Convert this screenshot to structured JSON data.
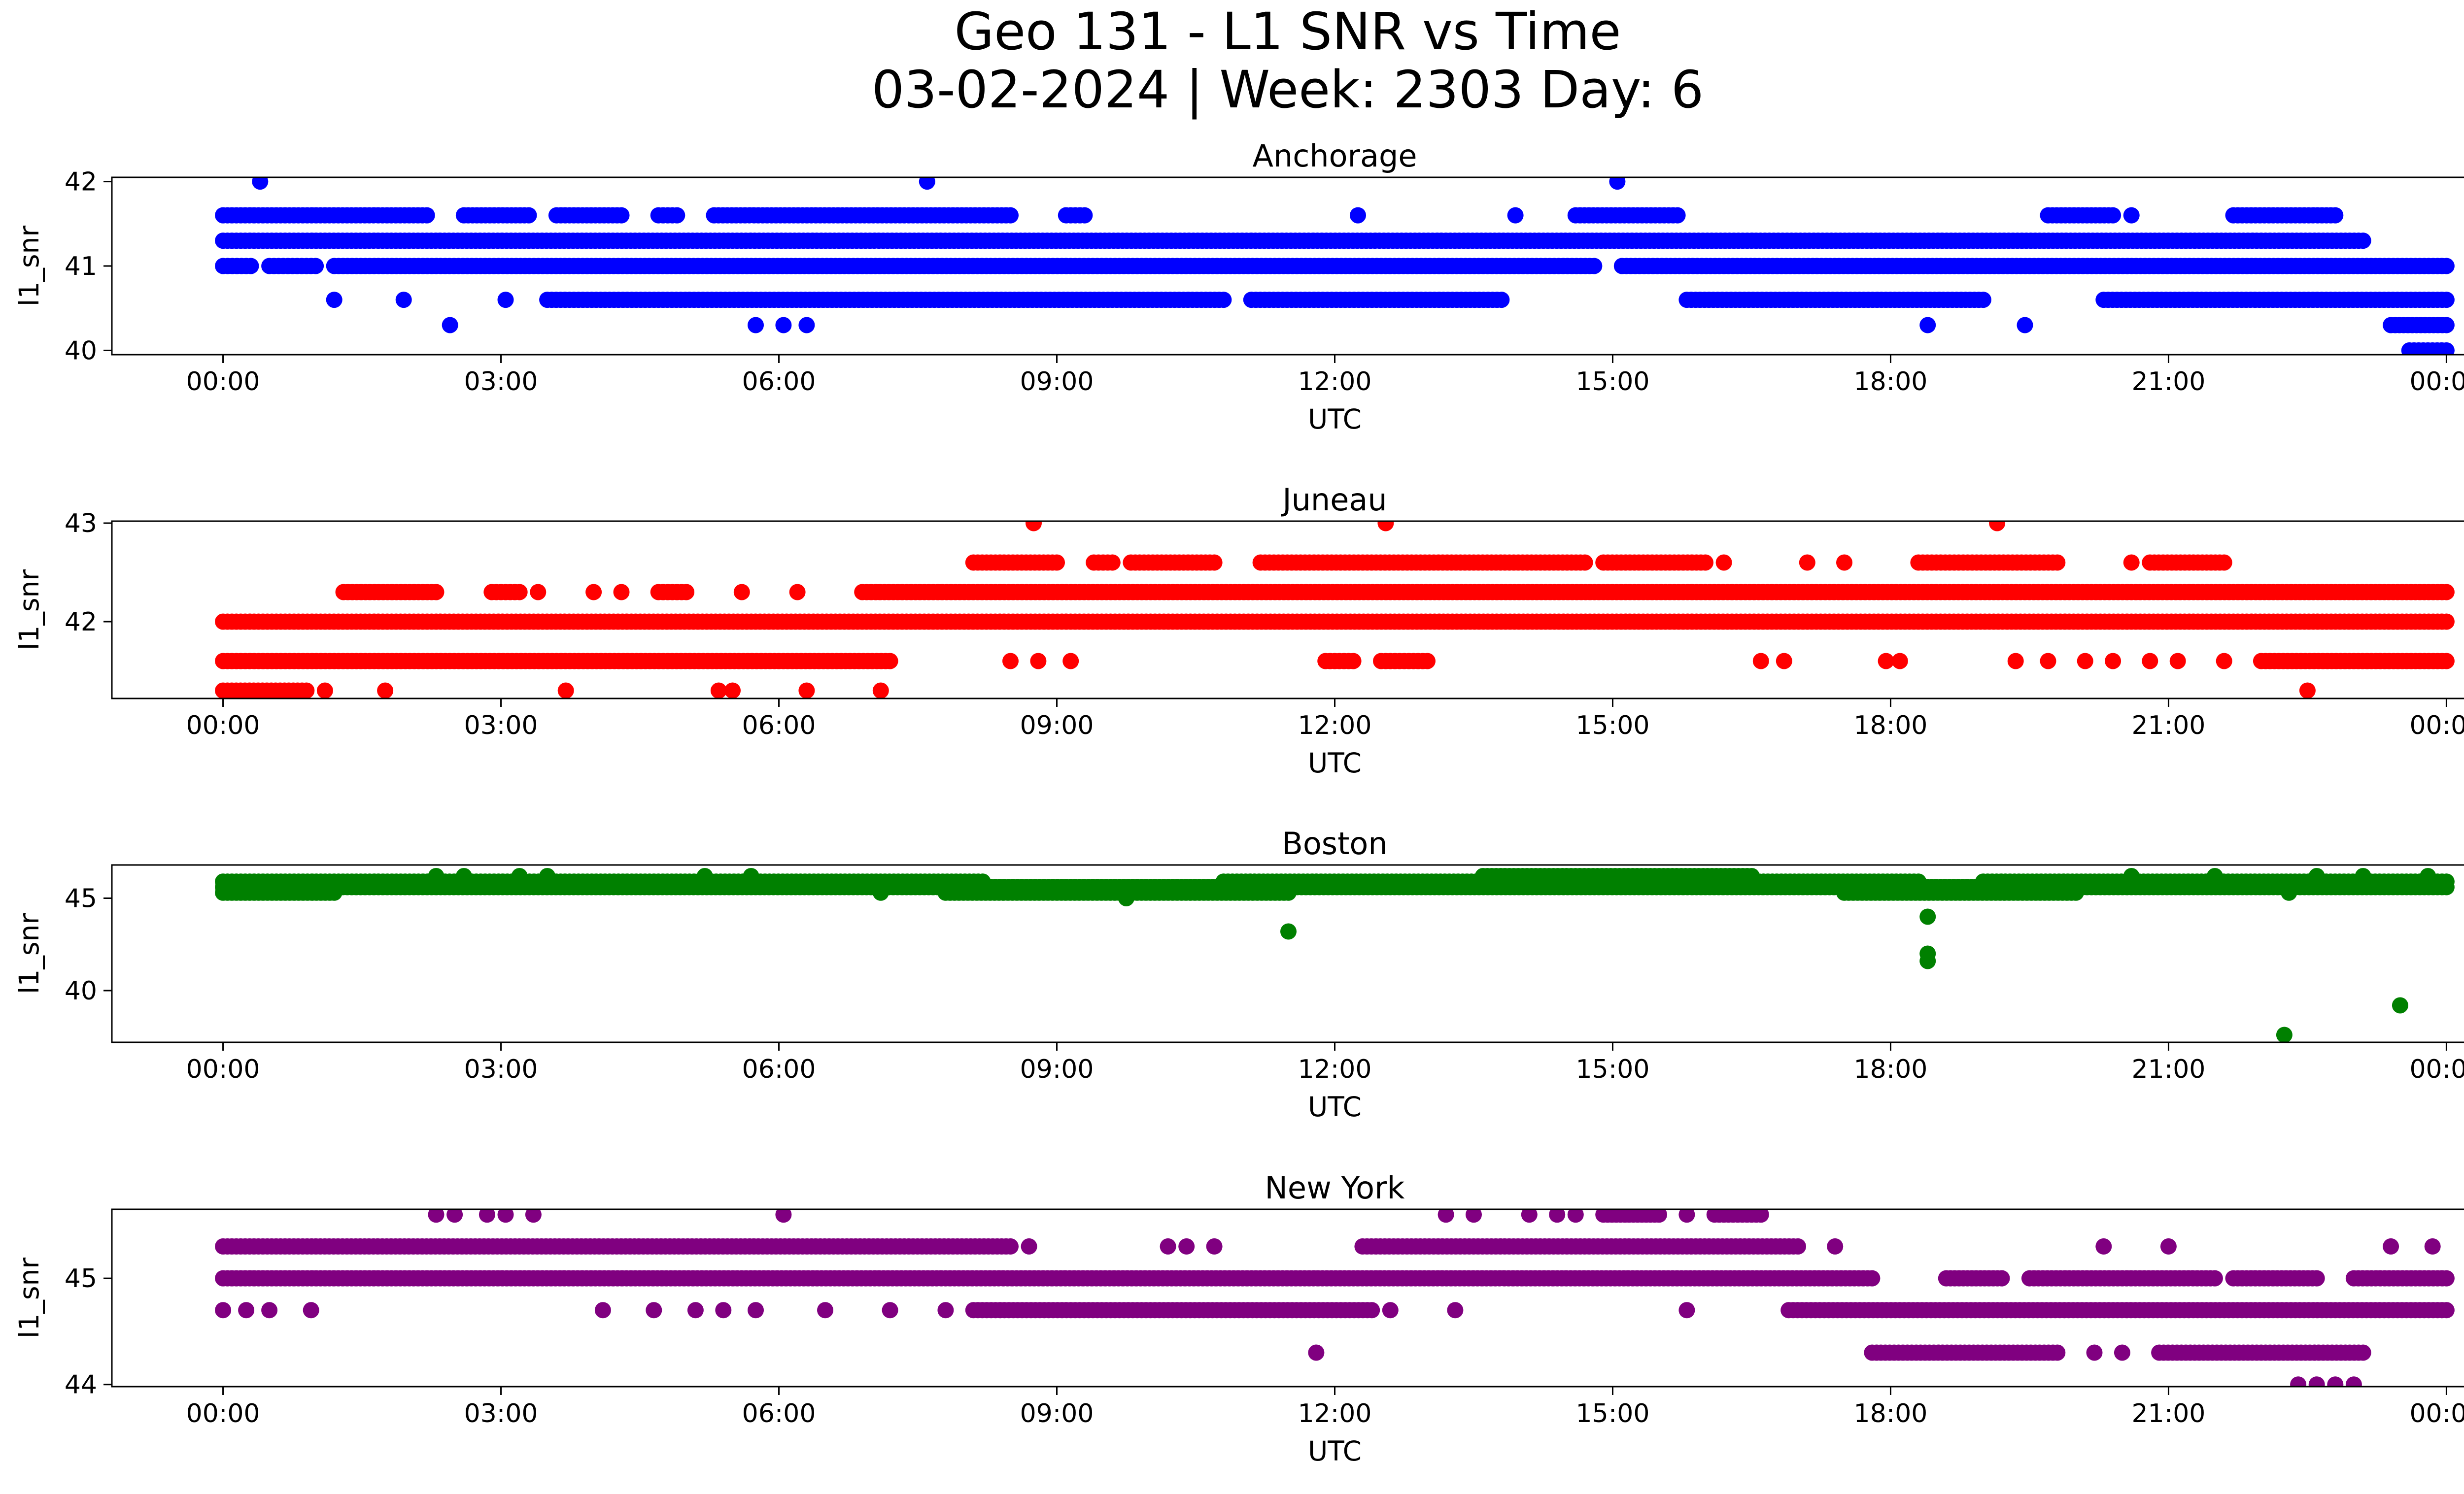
{
  "figure": {
    "title_line1": "Geo 131 - L1 SNR vs Time",
    "title_line2": "03-02-2024 | Week: 2303 Day: 6"
  },
  "chart_data": [
    {
      "type": "scatter",
      "title": "Anchorage",
      "xlabel": "UTC",
      "ylabel": "l1_snr",
      "color": "#0000ff",
      "xlim": [
        -1.2,
        25.2
      ],
      "ylim": [
        39.95,
        42.05
      ],
      "xticks": [
        "00:00",
        "03:00",
        "06:00",
        "09:00",
        "12:00",
        "15:00",
        "18:00",
        "21:00",
        "00:00"
      ],
      "yticks": [
        40,
        41,
        42
      ],
      "bands": [
        {
          "y": 41.3,
          "ranges": [
            [
              0,
              23.1
            ]
          ]
        },
        {
          "y": 41.0,
          "ranges": [
            [
              0,
              0.3
            ],
            [
              0.5,
              1.0
            ],
            [
              1.2,
              14.8
            ],
            [
              15.1,
              24.0
            ]
          ]
        },
        {
          "y": 41.6,
          "ranges": [
            [
              0,
              2.2
            ],
            [
              2.6,
              3.3
            ],
            [
              3.6,
              4.3
            ],
            [
              4.7,
              4.9
            ],
            [
              5.3,
              8.5
            ],
            [
              9.1,
              9.3
            ],
            [
              14.6,
              15.7
            ],
            [
              19.7,
              20.4
            ],
            [
              21.7,
              22.8
            ]
          ]
        },
        {
          "y": 40.6,
          "ranges": [
            [
              3.5,
              10.8
            ],
            [
              11.1,
              13.8
            ],
            [
              15.8,
              19.0
            ],
            [
              20.3,
              24.0
            ]
          ]
        },
        {
          "y": 40.3,
          "ranges": [
            [
              23.4,
              24.0
            ]
          ]
        },
        {
          "y": 40.0,
          "ranges": [
            [
              23.6,
              24.0
            ]
          ]
        }
      ],
      "points": [
        {
          "x": 0.4,
          "y": 42
        },
        {
          "x": 7.6,
          "y": 42
        },
        {
          "x": 15.05,
          "y": 42
        },
        {
          "x": 12.25,
          "y": 41.6
        },
        {
          "x": 13.95,
          "y": 41.6
        },
        {
          "x": 20.6,
          "y": 41.6
        },
        {
          "x": 1.2,
          "y": 40.6
        },
        {
          "x": 1.95,
          "y": 40.6
        },
        {
          "x": 3.05,
          "y": 40.6
        },
        {
          "x": 2.45,
          "y": 40.3
        },
        {
          "x": 5.75,
          "y": 40.3
        },
        {
          "x": 6.05,
          "y": 40.3
        },
        {
          "x": 6.3,
          "y": 40.3
        },
        {
          "x": 18.4,
          "y": 40.3
        },
        {
          "x": 19.45,
          "y": 40.3
        }
      ]
    },
    {
      "type": "scatter",
      "title": "Juneau",
      "xlabel": "UTC",
      "ylabel": "l1_snr",
      "color": "#ff0000",
      "xlim": [
        -1.2,
        25.2
      ],
      "ylim": [
        41.22,
        43.02
      ],
      "xticks": [
        "00:00",
        "03:00",
        "06:00",
        "09:00",
        "12:00",
        "15:00",
        "18:00",
        "21:00",
        "00:00"
      ],
      "yticks": [
        42,
        43
      ],
      "bands": [
        {
          "y": 42.0,
          "ranges": [
            [
              0,
              24.0
            ]
          ]
        },
        {
          "y": 41.6,
          "ranges": [
            [
              0,
              7.2
            ]
          ]
        },
        {
          "y": 41.3,
          "ranges": [
            [
              0,
              0.9
            ]
          ]
        },
        {
          "y": 42.3,
          "ranges": [
            [
              1.3,
              2.3
            ],
            [
              2.9,
              3.2
            ],
            [
              4.7,
              5.0
            ],
            [
              6.9,
              24.0
            ]
          ]
        },
        {
          "y": 42.6,
          "ranges": [
            [
              8.1,
              9.0
            ],
            [
              9.4,
              9.6
            ],
            [
              9.8,
              10.7
            ],
            [
              11.2,
              14.7
            ],
            [
              14.9,
              16.0
            ],
            [
              18.3,
              19.8
            ],
            [
              20.8,
              21.6
            ]
          ]
        },
        {
          "y": 41.6,
          "ranges": [
            [
              11.9,
              12.2
            ],
            [
              12.5,
              13.0
            ],
            [
              22.0,
              24.0
            ]
          ]
        }
      ],
      "points": [
        {
          "x": 8.75,
          "y": 43
        },
        {
          "x": 12.55,
          "y": 43
        },
        {
          "x": 19.15,
          "y": 43
        },
        {
          "x": 1.1,
          "y": 41.3
        },
        {
          "x": 1.75,
          "y": 41.3
        },
        {
          "x": 3.7,
          "y": 41.3
        },
        {
          "x": 5.35,
          "y": 41.3
        },
        {
          "x": 5.5,
          "y": 41.3
        },
        {
          "x": 6.3,
          "y": 41.3
        },
        {
          "x": 7.1,
          "y": 41.3
        },
        {
          "x": 22.5,
          "y": 41.3
        },
        {
          "x": 3.4,
          "y": 42.3
        },
        {
          "x": 4.0,
          "y": 42.3
        },
        {
          "x": 4.3,
          "y": 42.3
        },
        {
          "x": 5.6,
          "y": 42.3
        },
        {
          "x": 6.2,
          "y": 42.3
        },
        {
          "x": 16.2,
          "y": 42.6
        },
        {
          "x": 17.1,
          "y": 42.6
        },
        {
          "x": 17.5,
          "y": 42.6
        },
        {
          "x": 20.6,
          "y": 42.6
        },
        {
          "x": 8.5,
          "y": 41.6
        },
        {
          "x": 8.8,
          "y": 41.6
        },
        {
          "x": 9.15,
          "y": 41.6
        },
        {
          "x": 16.6,
          "y": 41.6
        },
        {
          "x": 16.85,
          "y": 41.6
        },
        {
          "x": 17.95,
          "y": 41.6
        },
        {
          "x": 18.1,
          "y": 41.6
        },
        {
          "x": 19.35,
          "y": 41.6
        },
        {
          "x": 19.7,
          "y": 41.6
        },
        {
          "x": 20.1,
          "y": 41.6
        },
        {
          "x": 20.4,
          "y": 41.6
        },
        {
          "x": 20.8,
          "y": 41.6
        },
        {
          "x": 21.1,
          "y": 41.6
        },
        {
          "x": 21.6,
          "y": 41.6
        }
      ]
    },
    {
      "type": "scatter",
      "title": "Boston",
      "xlabel": "UTC",
      "ylabel": "l1_snr",
      "color": "#008000",
      "xlim": [
        -1.2,
        25.2
      ],
      "ylim": [
        37.2,
        46.8
      ],
      "xticks": [
        "00:00",
        "03:00",
        "06:00",
        "09:00",
        "12:00",
        "15:00",
        "18:00",
        "21:00",
        "00:00"
      ],
      "yticks": [
        40,
        45
      ],
      "bands": [
        {
          "y": 45.9,
          "ranges": [
            [
              0,
              8.2
            ],
            [
              10.8,
              18.3
            ],
            [
              19.0,
              24.0
            ]
          ]
        },
        {
          "y": 45.6,
          "ranges": [
            [
              0,
              24.0
            ]
          ]
        },
        {
          "y": 45.3,
          "ranges": [
            [
              0,
              1.2
            ],
            [
              7.8,
              11.5
            ],
            [
              17.5,
              20.0
            ]
          ]
        },
        {
          "y": 46.2,
          "ranges": [
            [
              13.6,
              16.5
            ]
          ]
        }
      ],
      "points": [
        {
          "x": 2.3,
          "y": 46.2
        },
        {
          "x": 2.6,
          "y": 46.2
        },
        {
          "x": 3.2,
          "y": 46.2
        },
        {
          "x": 3.5,
          "y": 46.2
        },
        {
          "x": 5.2,
          "y": 46.2
        },
        {
          "x": 5.7,
          "y": 46.2
        },
        {
          "x": 20.6,
          "y": 46.2
        },
        {
          "x": 21.5,
          "y": 46.2
        },
        {
          "x": 22.6,
          "y": 46.2
        },
        {
          "x": 23.1,
          "y": 46.2
        },
        {
          "x": 23.8,
          "y": 46.2
        },
        {
          "x": 7.1,
          "y": 45.3
        },
        {
          "x": 9.75,
          "y": 45.0
        },
        {
          "x": 22.3,
          "y": 45.3
        },
        {
          "x": 11.5,
          "y": 43.2
        },
        {
          "x": 18.4,
          "y": 44.0
        },
        {
          "x": 18.4,
          "y": 42.0
        },
        {
          "x": 18.4,
          "y": 41.6
        },
        {
          "x": 23.5,
          "y": 39.2
        },
        {
          "x": 22.25,
          "y": 37.6
        }
      ]
    },
    {
      "type": "scatter",
      "title": "New York",
      "xlabel": "UTC",
      "ylabel": "l1_snr",
      "color": "#800080",
      "xlim": [
        -1.2,
        25.2
      ],
      "ylim": [
        43.98,
        45.65
      ],
      "xticks": [
        "00:00",
        "03:00",
        "06:00",
        "09:00",
        "12:00",
        "15:00",
        "18:00",
        "21:00",
        "00:00"
      ],
      "yticks": [
        44,
        45
      ],
      "bands": [
        {
          "y": 45.0,
          "ranges": [
            [
              0,
              17.8
            ],
            [
              18.6,
              19.2
            ],
            [
              19.5,
              21.5
            ],
            [
              21.7,
              22.6
            ],
            [
              23.0,
              24.0
            ]
          ]
        },
        {
          "y": 45.3,
          "ranges": [
            [
              0,
              8.5
            ],
            [
              12.3,
              17.0
            ]
          ]
        },
        {
          "y": 44.7,
          "ranges": [
            [
              8.1,
              12.4
            ],
            [
              16.9,
              24.0
            ]
          ]
        },
        {
          "y": 44.3,
          "ranges": [
            [
              17.8,
              19.8
            ],
            [
              20.9,
              23.1
            ]
          ]
        },
        {
          "y": 45.6,
          "ranges": [
            [
              14.9,
              15.5
            ],
            [
              16.1,
              16.6
            ]
          ]
        }
      ],
      "points": [
        {
          "x": 2.3,
          "y": 45.6
        },
        {
          "x": 2.5,
          "y": 45.6
        },
        {
          "x": 2.85,
          "y": 45.6
        },
        {
          "x": 3.05,
          "y": 45.6
        },
        {
          "x": 3.35,
          "y": 45.6
        },
        {
          "x": 6.05,
          "y": 45.6
        },
        {
          "x": 13.2,
          "y": 45.6
        },
        {
          "x": 13.5,
          "y": 45.6
        },
        {
          "x": 14.1,
          "y": 45.6
        },
        {
          "x": 14.4,
          "y": 45.6
        },
        {
          "x": 14.6,
          "y": 45.6
        },
        {
          "x": 15.8,
          "y": 45.6
        },
        {
          "x": 8.7,
          "y": 45.3
        },
        {
          "x": 10.2,
          "y": 45.3
        },
        {
          "x": 10.4,
          "y": 45.3
        },
        {
          "x": 10.7,
          "y": 45.3
        },
        {
          "x": 17.4,
          "y": 45.3
        },
        {
          "x": 20.3,
          "y": 45.3
        },
        {
          "x": 21.0,
          "y": 45.3
        },
        {
          "x": 23.4,
          "y": 45.3
        },
        {
          "x": 23.85,
          "y": 45.3
        },
        {
          "x": 0.0,
          "y": 44.7
        },
        {
          "x": 0.25,
          "y": 44.7
        },
        {
          "x": 0.5,
          "y": 44.7
        },
        {
          "x": 0.95,
          "y": 44.7
        },
        {
          "x": 4.1,
          "y": 44.7
        },
        {
          "x": 4.65,
          "y": 44.7
        },
        {
          "x": 5.1,
          "y": 44.7
        },
        {
          "x": 5.4,
          "y": 44.7
        },
        {
          "x": 5.75,
          "y": 44.7
        },
        {
          "x": 6.5,
          "y": 44.7
        },
        {
          "x": 7.2,
          "y": 44.7
        },
        {
          "x": 7.8,
          "y": 44.7
        },
        {
          "x": 12.6,
          "y": 44.7
        },
        {
          "x": 13.3,
          "y": 44.7
        },
        {
          "x": 15.8,
          "y": 44.7
        },
        {
          "x": 11.8,
          "y": 44.3
        },
        {
          "x": 20.2,
          "y": 44.3
        },
        {
          "x": 20.5,
          "y": 44.3
        },
        {
          "x": 22.4,
          "y": 44.0
        },
        {
          "x": 22.6,
          "y": 44.0
        },
        {
          "x": 22.8,
          "y": 44.0
        },
        {
          "x": 23.0,
          "y": 44.0
        }
      ]
    }
  ]
}
